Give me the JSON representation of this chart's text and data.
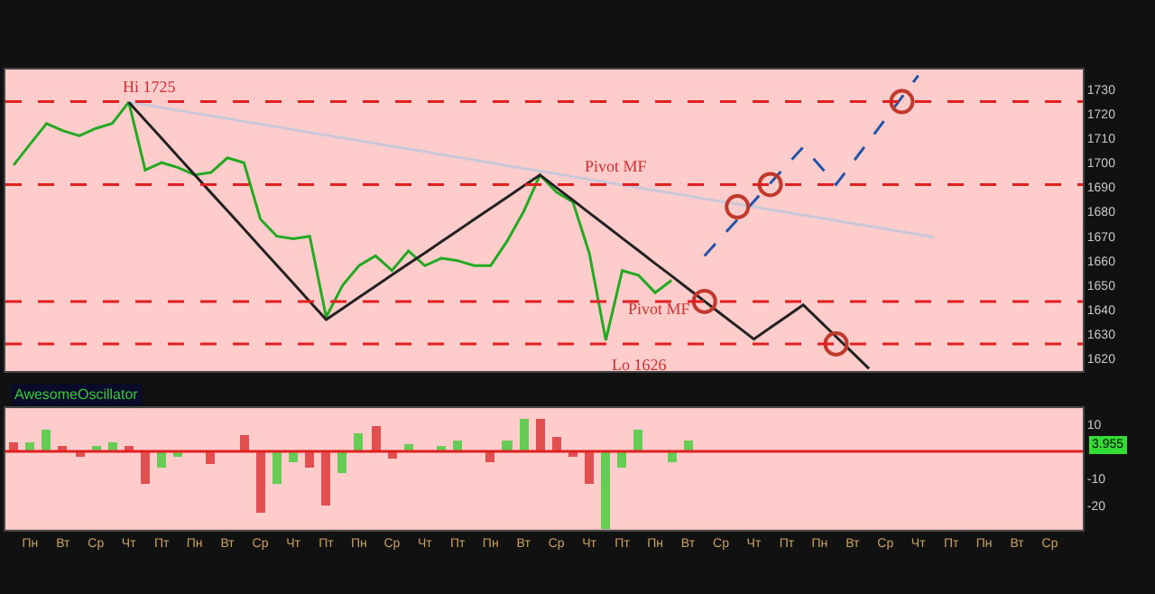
{
  "chart_data": [
    {
      "type": "line",
      "ylim": [
        1615,
        1738
      ],
      "yticks": [
        1620,
        1630,
        1640,
        1650,
        1660,
        1670,
        1680,
        1690,
        1700,
        1710,
        1720,
        1730
      ],
      "tick_labels": "y",
      "grid": false,
      "categories": [
        null,
        "Пн",
        null,
        "Вт",
        null,
        "Ср",
        null,
        "Чт",
        null,
        "Пт",
        null,
        "Пн",
        null,
        "Вт",
        null,
        "Ср",
        null,
        "Чт",
        null,
        "Пт",
        null,
        "Пн",
        null,
        "Ср",
        null,
        "Чт",
        null,
        "Пт",
        null,
        "Пн",
        null,
        "Вт",
        null,
        "Ср",
        null,
        "Чт",
        null,
        "Пт",
        null,
        "Пн",
        null,
        "Вт",
        null,
        "Ср",
        null,
        "Чт",
        null,
        "Пт",
        null,
        "Пн",
        null,
        "Вт",
        null,
        "Ср",
        null,
        "Чт",
        null,
        "Пт",
        null,
        "Пн",
        null,
        "Вт",
        null,
        "Ср",
        null
      ],
      "series": [
        {
          "type": "line",
          "color": "#22aa22",
          "values": [
            1699,
            1707.6,
            1716,
            1713,
            1711,
            1714,
            1716,
            1724.7,
            1697,
            1700,
            1698,
            1695,
            1696,
            1702,
            1700,
            1677,
            1670,
            1669,
            1670,
            1637,
            1650,
            1658,
            1662,
            1656,
            1664,
            1658,
            1661,
            1660,
            1658,
            1658,
            1668,
            1680,
            1695,
            1688,
            1684,
            1663,
            1627.6,
            1656,
            1654,
            1647,
            1652,
            null,
            null,
            null,
            null,
            null,
            null,
            null,
            null,
            null,
            null,
            null,
            null,
            null,
            null,
            null,
            null,
            null,
            null,
            null,
            null,
            null,
            null,
            null,
            null
          ]
        },
        {
          "type": "line",
          "color": "#c8c8d8",
          "values": [
            null,
            null,
            null,
            null,
            null,
            null,
            null,
            1724.7,
            1723.6,
            1722.5,
            1721.3,
            1720.2,
            1719.1,
            1718.0,
            1716.8,
            1715.7,
            1714.6,
            1713.5,
            1712.3,
            1711.2,
            1710.1,
            1709.0,
            1707.8,
            1706.7,
            1705.6,
            1704.5,
            1703.3,
            1702.2,
            1701.1,
            1700.0,
            1698.8,
            1697.7,
            1696.6,
            1695.5,
            1694.3,
            1693.2,
            1692.1,
            1691.0,
            1689.8,
            1688.7,
            1687.6,
            1686.5,
            1685.3,
            1684.2,
            1683.1,
            1682.0,
            1680.8,
            1679.7,
            1678.6,
            1677.5,
            1676.3,
            1675.2,
            1674.1,
            1673.0,
            1671.8,
            1670.7,
            1669.6,
            null,
            null,
            null,
            null,
            null,
            null,
            null,
            null
          ]
        },
        {
          "type": "line",
          "color": "#222222",
          "values": [
            null,
            null,
            null,
            null,
            null,
            null,
            null,
            1724.7,
            1717.3,
            1709.9,
            1702.5,
            1695.1,
            1687.7,
            1680.4,
            1673.0,
            1665.6,
            1658.2,
            1650.8,
            1643.4,
            1636.0,
            1640.5,
            1645.1,
            1649.6,
            1654.2,
            1658.7,
            1663.2,
            1667.8,
            1672.3,
            1676.9,
            1681.4,
            1685.9,
            1690.5,
            1695.0,
            1689.8,
            1684.7,
            1679.5,
            1674.4,
            1669.2,
            1664.1,
            1658.9,
            1653.8,
            1648.6,
            1643.5,
            1638.3,
            1633.2,
            1628.0,
            1632.7,
            1637.3,
            1642.0,
            1635.5,
            1629.0,
            1622.5,
            1616.0,
            null,
            null,
            null,
            null,
            null,
            null,
            null,
            null,
            null,
            null,
            null,
            null
          ]
        },
        {
          "type": "line",
          "color": "#2255aa",
          "line_style": "dashed",
          "values": [
            null,
            null,
            null,
            null,
            null,
            null,
            null,
            null,
            null,
            null,
            null,
            null,
            null,
            null,
            null,
            null,
            null,
            null,
            null,
            null,
            null,
            null,
            null,
            null,
            null,
            null,
            null,
            null,
            null,
            null,
            null,
            null,
            null,
            null,
            null,
            null,
            null,
            null,
            null,
            null,
            null,
            null,
            1662,
            1669.4,
            1676.8,
            1684.2,
            1691.6,
            1699.0,
            1706.4,
            1698.8,
            1691.1,
            1700.0,
            1708.9,
            1717.8,
            1726.7,
            1735.6,
            null,
            null,
            null,
            null,
            null,
            null,
            null,
            null,
            null
          ]
        },
        {
          "type": "scatter",
          "color": "#c0392b",
          "marker": "circle",
          "values": [
            null,
            null,
            null,
            null,
            null,
            null,
            null,
            null,
            null,
            null,
            null,
            null,
            null,
            null,
            null,
            null,
            null,
            null,
            null,
            null,
            null,
            null,
            null,
            null,
            null,
            null,
            null,
            null,
            null,
            null,
            null,
            null,
            null,
            null,
            null,
            null,
            null,
            null,
            null,
            null,
            null,
            null,
            1643.4,
            null,
            1682,
            null,
            1691.1,
            null,
            null,
            null,
            1626.1,
            null,
            null,
            null,
            1724.9,
            null,
            null,
            null,
            null,
            null,
            null,
            null,
            null,
            null,
            null
          ]
        }
      ],
      "ref_lines": [
        {
          "axis": "y",
          "value": 1724.9,
          "color": "#e02020",
          "line_style": "dashed"
        },
        {
          "axis": "y",
          "value": 1691.1,
          "color": "#e02020",
          "line_style": "dashed"
        },
        {
          "axis": "y",
          "value": 1643.4,
          "color": "#e02020",
          "line_style": "dashed"
        },
        {
          "axis": "y",
          "value": 1626.1,
          "color": "#e02020",
          "line_style": "dashed"
        }
      ],
      "annotations": [
        "Hi 1725",
        "Lo 1626",
        "Pivot MF",
        "Pivot MF"
      ]
    },
    {
      "type": "bar",
      "title": "AwesomeOscillator",
      "ylim": [
        -29,
        16
      ],
      "yticks": [
        10,
        -10,
        -20
      ],
      "grid": false,
      "categories": [
        null,
        "Пн",
        null,
        "Вт",
        null,
        "Ср",
        null,
        "Чт",
        null,
        "Пт",
        null,
        "Пн",
        null,
        "Вт",
        null,
        "Ср",
        null,
        "Чт",
        null,
        "Пт",
        null,
        "Пн",
        null,
        "Ср",
        null,
        "Чт",
        null,
        "Пт",
        null,
        "Пн",
        null,
        "Вт",
        null,
        "Ср",
        null,
        "Чт",
        null,
        "Пт",
        null,
        "Пн",
        null,
        "Вт",
        null,
        "Ср",
        null,
        "Чт",
        null,
        "Пт",
        null,
        "Пн",
        null,
        "Вт",
        null,
        "Ср",
        null,
        "Чт",
        null,
        "Пт",
        null,
        "Пн",
        null,
        "Вт",
        null,
        "Ср",
        null
      ],
      "values": [
        3.5,
        3.6,
        8.3,
        2,
        -1.7,
        2,
        3.6,
        2,
        -11.9,
        -6,
        -2,
        0,
        -4.8,
        0,
        6,
        -22.6,
        -11.9,
        -4,
        -6,
        -20.2,
        -8.3,
        6.4,
        9.5,
        -2.4,
        2.4,
        0,
        2,
        4,
        0,
        -4.3,
        4,
        11.9,
        11.9,
        5,
        -2,
        -12,
        -28.6,
        -6,
        7.9,
        0,
        -4,
        4,
        null,
        null,
        null,
        null,
        null,
        null,
        null,
        null,
        null,
        null,
        null,
        null,
        null,
        null,
        null,
        null,
        null,
        null,
        null,
        null,
        null,
        null,
        null
      ],
      "colors": [
        "#e05050",
        "#66cc55",
        "#66cc55",
        "#e05050",
        "#e05050",
        "#66cc55",
        "#66cc55",
        "#e05050",
        "#e05050",
        "#66cc55",
        "#66cc55",
        "#66cc55",
        "#e05050",
        "#66cc55",
        "#e05050",
        "#e05050",
        "#66cc55",
        "#66cc55",
        "#e05050",
        "#e05050",
        "#66cc55",
        "#66cc55",
        "#e05050",
        "#e05050",
        "#66cc55",
        "#e05050",
        "#66cc55",
        "#66cc55",
        "#e05050",
        "#e05050",
        "#66cc55",
        "#66cc55",
        "#e05050",
        "#e05050",
        "#e05050",
        "#e05050",
        "#66cc55",
        "#66cc55",
        "#66cc55",
        "#e05050",
        "#66cc55",
        "#66cc55",
        "#66cc55",
        "#66cc55",
        "#66cc55",
        "#66cc55",
        "#66cc55",
        "#66cc55",
        "#66cc55",
        "#66cc55",
        "#66cc55",
        "#66cc55",
        "#66cc55",
        "#66cc55",
        "#66cc55",
        "#66cc55",
        "#66cc55",
        "#66cc55",
        "#66cc55",
        "#66cc55",
        "#66cc55",
        "#66cc55",
        "#66cc55",
        "#66cc55",
        "#66cc55"
      ],
      "ref_lines": [
        {
          "axis": "y",
          "value": 0,
          "color": "#e02020"
        }
      ],
      "annotations": [
        "3.955"
      ]
    }
  ]
}
